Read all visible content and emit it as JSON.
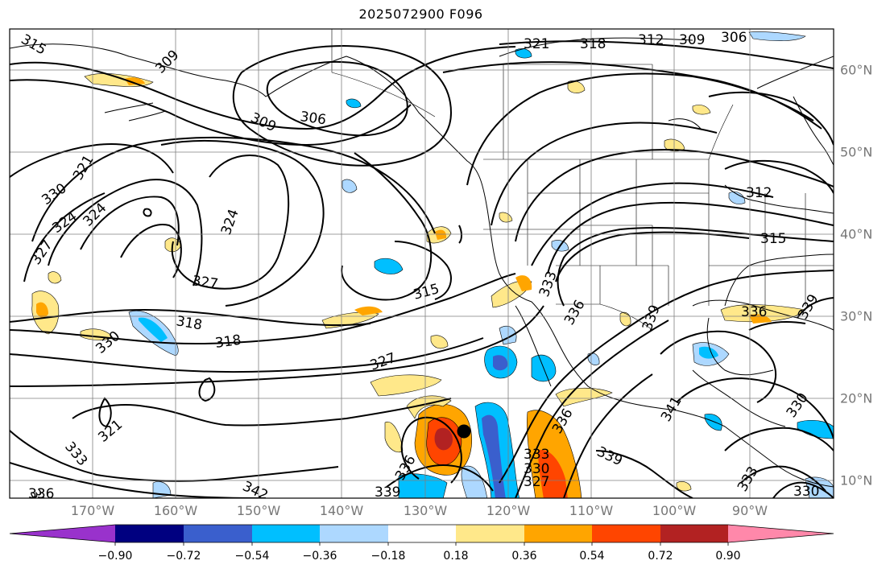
{
  "title": "2025072900 F096",
  "map": {
    "region": "North-East Pacific / North America",
    "grid": true,
    "lon_labels": [
      "170°W",
      "160°W",
      "150°W",
      "140°W",
      "130°W",
      "120°W",
      "110°W",
      "100°W",
      "90°W"
    ],
    "lat_labels": [
      "60°N",
      "50°N",
      "40°N",
      "30°N",
      "20°N",
      "10°N"
    ],
    "contour_labels": [
      "315",
      "309",
      "321",
      "318",
      "312",
      "309",
      "306",
      "306",
      "309",
      "321",
      "324",
      "330",
      "327",
      "324",
      "324",
      "327",
      "318",
      "318",
      "330",
      "327",
      "315",
      "312",
      "315",
      "321",
      "333",
      "336",
      "339",
      "342",
      "339",
      "336",
      "333",
      "330",
      "327",
      "330",
      "336",
      "339",
      "341",
      "330",
      "333",
      "330",
      "339",
      "336",
      "330",
      "333",
      "336"
    ],
    "storm_marker": "tropical-cyclone-position",
    "colors": {
      "contour": "#000000",
      "grid": "#7f7f7f",
      "coast": "#000000"
    }
  },
  "colorbar": {
    "ticks": [
      "−0.90",
      "−0.72",
      "−0.54",
      "−0.36",
      "−0.18",
      "0.18",
      "0.36",
      "0.54",
      "0.72",
      "0.90"
    ],
    "colors": [
      "#9932cc",
      "#000080",
      "#3a5fcd",
      "#00bfff",
      "#add8ff",
      "#ffffff",
      "#ffe88a",
      "#ffa500",
      "#ff4500",
      "#b22222",
      "#ff88aa"
    ]
  }
}
